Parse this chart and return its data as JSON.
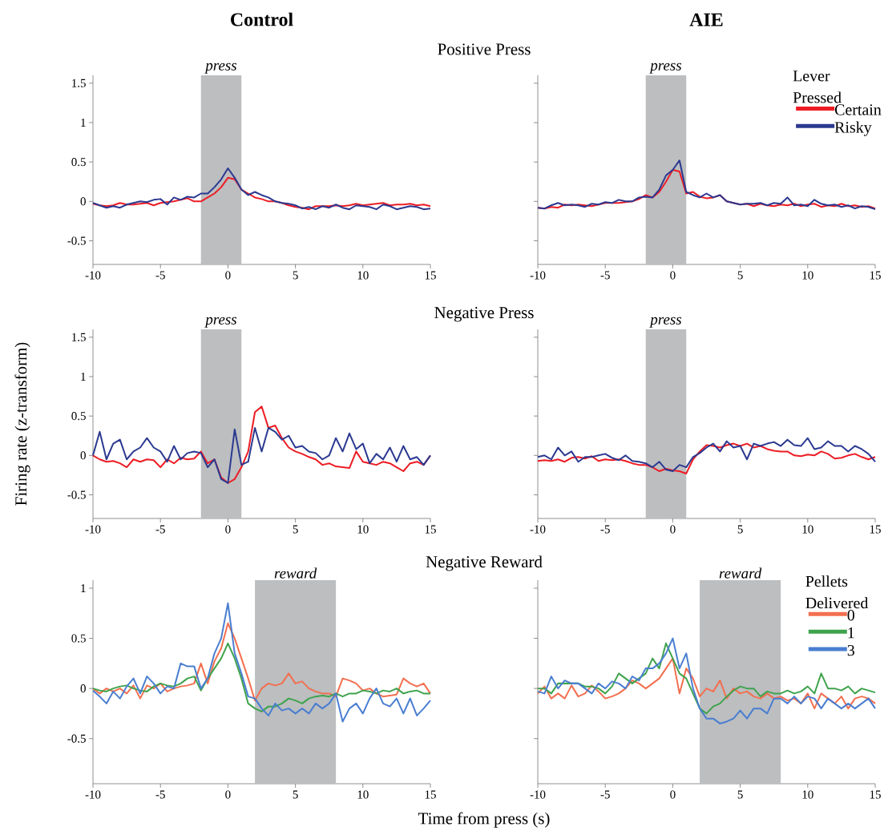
{
  "chart_data": [
    {
      "type": "line",
      "title": "Control",
      "subtitle": "Positive Press",
      "x": [
        -10,
        -9.5,
        -9,
        -8.5,
        -8,
        -7.5,
        -7,
        -6.5,
        -6,
        -5.5,
        -5,
        -4.5,
        -4,
        -3.5,
        -3,
        -2.5,
        -2,
        -1.5,
        -1,
        -0.5,
        0,
        0.5,
        1,
        1.5,
        2,
        2.5,
        3,
        3.5,
        4,
        4.5,
        5,
        5.5,
        6,
        6.5,
        7,
        7.5,
        8,
        8.5,
        9,
        9.5,
        10,
        10.5,
        11,
        11.5,
        12,
        12.5,
        13,
        13.5,
        14,
        14.5,
        15
      ],
      "xlim": [
        -10,
        15
      ],
      "xticks": [
        -10,
        -5,
        0,
        5,
        10,
        15
      ],
      "ylim": [
        -0.8,
        1.6
      ],
      "yticks": [
        -0.5,
        0,
        0.5,
        1,
        1.5
      ],
      "bands": [
        {
          "axis": "x",
          "from": -2,
          "to": 1,
          "label": "press",
          "color": "#bcbec0"
        }
      ],
      "series": [
        {
          "color": "#ed1c24",
          "values": [
            -0.03,
            -0.05,
            -0.06,
            -0.05,
            -0.02,
            -0.04,
            -0.04,
            -0.03,
            -0.02,
            -0.05,
            -0.02,
            -0.01,
            0.0,
            0.02,
            0.04,
            0.0,
            0.0,
            0.05,
            0.1,
            0.18,
            0.3,
            0.28,
            0.15,
            0.1,
            0.05,
            0.03,
            0.0,
            0.0,
            -0.02,
            -0.05,
            -0.07,
            -0.08,
            -0.1,
            -0.06,
            -0.06,
            -0.06,
            -0.05,
            -0.06,
            -0.05,
            -0.03,
            -0.05,
            -0.04,
            -0.03,
            -0.02,
            -0.05,
            -0.04,
            -0.04,
            -0.03,
            -0.05,
            -0.04,
            -0.06
          ]
        },
        {
          "color": "#2b3990",
          "values": [
            -0.02,
            -0.05,
            -0.08,
            -0.06,
            -0.08,
            -0.04,
            -0.02,
            0.0,
            -0.01,
            0.02,
            0.03,
            -0.04,
            0.05,
            0.02,
            0.06,
            0.05,
            0.1,
            0.1,
            0.18,
            0.28,
            0.42,
            0.3,
            0.15,
            0.08,
            0.12,
            0.08,
            0.05,
            0.0,
            -0.02,
            -0.03,
            -0.05,
            -0.09,
            -0.07,
            -0.1,
            -0.06,
            -0.08,
            -0.04,
            -0.08,
            -0.1,
            -0.05,
            -0.06,
            -0.07,
            -0.1,
            -0.04,
            -0.06,
            -0.1,
            -0.08,
            -0.06,
            -0.07,
            -0.1,
            -0.09
          ]
        }
      ]
    },
    {
      "type": "line",
      "title": "AIE",
      "legend": "top right",
      "legend_title": "Lever Pressed",
      "x": [
        -10,
        -9.5,
        -9,
        -8.5,
        -8,
        -7.5,
        -7,
        -6.5,
        -6,
        -5.5,
        -5,
        -4.5,
        -4,
        -3.5,
        -3,
        -2.5,
        -2,
        -1.5,
        -1,
        -0.5,
        0,
        0.5,
        1,
        1.5,
        2,
        2.5,
        3,
        3.5,
        4,
        4.5,
        5,
        5.5,
        6,
        6.5,
        7,
        7.5,
        8,
        8.5,
        9,
        9.5,
        10,
        10.5,
        11,
        11.5,
        12,
        12.5,
        13,
        13.5,
        14,
        14.5,
        15
      ],
      "xlim": [
        -10,
        15
      ],
      "xticks": [
        -10,
        -5,
        0,
        5,
        10,
        15
      ],
      "ylim": [
        -0.8,
        1.6
      ],
      "yticks": [
        -0.5,
        0,
        0.5,
        1,
        1.5
      ],
      "tick_labels": "x",
      "bands": [
        {
          "axis": "x",
          "from": -2,
          "to": 1,
          "label": "press",
          "color": "#bcbec0"
        }
      ],
      "series": [
        {
          "name": "Certain",
          "color": "#ed1c24",
          "values": [
            -0.08,
            -0.09,
            -0.07,
            -0.08,
            -0.04,
            -0.05,
            -0.04,
            -0.05,
            -0.06,
            -0.04,
            -0.02,
            -0.02,
            -0.02,
            -0.01,
            0.0,
            0.03,
            0.08,
            0.05,
            0.12,
            0.25,
            0.4,
            0.38,
            0.1,
            0.12,
            0.06,
            0.04,
            0.05,
            0.08,
            0.0,
            -0.02,
            -0.04,
            -0.03,
            -0.06,
            -0.03,
            -0.05,
            -0.06,
            -0.04,
            -0.05,
            -0.03,
            -0.06,
            -0.04,
            -0.03,
            -0.07,
            -0.05,
            -0.06,
            -0.03,
            -0.06,
            -0.05,
            -0.07,
            -0.06,
            -0.09
          ]
        },
        {
          "name": "Risky",
          "color": "#2b3990",
          "values": [
            -0.08,
            -0.09,
            -0.05,
            -0.02,
            -0.05,
            -0.04,
            -0.05,
            -0.07,
            -0.03,
            -0.04,
            -0.01,
            -0.02,
            0.02,
            0.0,
            0.0,
            0.05,
            0.06,
            0.05,
            0.15,
            0.33,
            0.4,
            0.52,
            0.12,
            0.08,
            0.05,
            0.1,
            0.05,
            0.08,
            0.0,
            -0.02,
            -0.04,
            -0.03,
            -0.03,
            -0.02,
            -0.05,
            -0.02,
            -0.03,
            0.05,
            -0.05,
            -0.04,
            -0.06,
            0.02,
            -0.03,
            -0.05,
            -0.04,
            -0.07,
            -0.05,
            -0.09,
            -0.06,
            -0.07,
            -0.1
          ]
        }
      ]
    },
    {
      "type": "line",
      "subtitle": "Negative Press",
      "ylabel": "Firing rate (z-transform)",
      "x": [
        -10,
        -9.5,
        -9,
        -8.5,
        -8,
        -7.5,
        -7,
        -6.5,
        -6,
        -5.5,
        -5,
        -4.5,
        -4,
        -3.5,
        -3,
        -2.5,
        -2,
        -1.5,
        -1,
        -0.5,
        0,
        0.5,
        1,
        1.5,
        2,
        2.5,
        3,
        3.5,
        4,
        4.5,
        5,
        5.5,
        6,
        6.5,
        7,
        7.5,
        8,
        8.5,
        9,
        9.5,
        10,
        10.5,
        11,
        11.5,
        12,
        12.5,
        13,
        13.5,
        14,
        14.5,
        15
      ],
      "xlim": [
        -10,
        15
      ],
      "xticks": [
        -10,
        -5,
        0,
        5,
        10,
        15
      ],
      "ylim": [
        -0.8,
        1.6
      ],
      "yticks": [
        -0.5,
        0,
        0.5,
        1,
        1.5
      ],
      "bands": [
        {
          "axis": "x",
          "from": -2,
          "to": 1,
          "label": "press",
          "color": "#bcbec0"
        }
      ],
      "series": [
        {
          "color": "#ed1c24",
          "values": [
            0.0,
            -0.05,
            -0.08,
            -0.07,
            -0.1,
            -0.15,
            -0.05,
            -0.08,
            -0.05,
            -0.06,
            -0.15,
            -0.05,
            -0.1,
            -0.03,
            -0.05,
            -0.04,
            0.05,
            -0.1,
            -0.05,
            -0.28,
            -0.35,
            -0.3,
            -0.15,
            0.05,
            0.55,
            0.62,
            0.35,
            0.38,
            0.22,
            0.1,
            0.05,
            0.02,
            -0.02,
            -0.05,
            -0.12,
            -0.1,
            -0.14,
            -0.15,
            -0.16,
            0.05,
            -0.08,
            -0.1,
            -0.12,
            -0.08,
            -0.1,
            -0.15,
            -0.2,
            -0.1,
            -0.08,
            -0.12,
            0.0
          ]
        },
        {
          "color": "#2b3990",
          "values": [
            0.0,
            0.3,
            -0.05,
            0.15,
            0.2,
            -0.05,
            0.05,
            0.1,
            0.22,
            0.1,
            0.05,
            -0.08,
            0.12,
            -0.05,
            0.03,
            0.05,
            0.03,
            -0.15,
            -0.05,
            -0.3,
            -0.35,
            0.33,
            -0.12,
            -0.08,
            0.35,
            0.05,
            0.35,
            0.3,
            0.2,
            0.25,
            0.1,
            0.12,
            0.05,
            0.03,
            -0.05,
            0.0,
            0.22,
            0.05,
            0.28,
            0.08,
            0.15,
            -0.1,
            0.02,
            -0.05,
            0.1,
            -0.08,
            0.12,
            -0.05,
            -0.02,
            -0.12,
            0.0
          ]
        }
      ]
    },
    {
      "type": "line",
      "x": [
        -10,
        -9.5,
        -9,
        -8.5,
        -8,
        -7.5,
        -7,
        -6.5,
        -6,
        -5.5,
        -5,
        -4.5,
        -4,
        -3.5,
        -3,
        -2.5,
        -2,
        -1.5,
        -1,
        -0.5,
        0,
        0.5,
        1,
        1.5,
        2,
        2.5,
        3,
        3.5,
        4,
        4.5,
        5,
        5.5,
        6,
        6.5,
        7,
        7.5,
        8,
        8.5,
        9,
        9.5,
        10,
        10.5,
        11,
        11.5,
        12,
        12.5,
        13,
        13.5,
        14,
        14.5,
        15
      ],
      "xlim": [
        -10,
        15
      ],
      "xticks": [
        -10,
        -5,
        0,
        5,
        10,
        15
      ],
      "ylim": [
        -0.8,
        1.6
      ],
      "yticks": [
        -0.5,
        0,
        0.5,
        1,
        1.5
      ],
      "tick_labels": "x",
      "bands": [
        {
          "axis": "x",
          "from": -2,
          "to": 1,
          "label": "press",
          "color": "#bcbec0"
        }
      ],
      "series": [
        {
          "color": "#ed1c24",
          "values": [
            -0.07,
            -0.06,
            -0.07,
            -0.05,
            -0.08,
            -0.03,
            -0.02,
            -0.04,
            -0.01,
            -0.07,
            -0.05,
            -0.06,
            -0.05,
            -0.07,
            -0.1,
            -0.12,
            -0.12,
            -0.15,
            -0.2,
            -0.17,
            -0.19,
            -0.2,
            -0.23,
            -0.05,
            0.05,
            0.13,
            0.12,
            0.1,
            0.13,
            0.15,
            0.12,
            0.15,
            0.1,
            0.12,
            0.08,
            0.06,
            0.05,
            0.05,
            0.0,
            -0.01,
            0.01,
            0.0,
            0.05,
            0.02,
            -0.04,
            -0.03,
            0.0,
            0.02,
            -0.02,
            -0.05,
            -0.02
          ]
        },
        {
          "color": "#2b3990",
          "values": [
            -0.02,
            0.0,
            -0.05,
            0.1,
            0.0,
            0.05,
            -0.08,
            -0.02,
            -0.02,
            0.0,
            0.02,
            -0.03,
            -0.06,
            0.0,
            -0.07,
            -0.08,
            -0.1,
            -0.15,
            -0.08,
            -0.18,
            -0.2,
            -0.12,
            -0.15,
            -0.02,
            0.03,
            0.1,
            0.15,
            0.05,
            0.18,
            0.1,
            0.12,
            -0.05,
            0.15,
            0.12,
            0.15,
            0.17,
            0.12,
            0.2,
            0.13,
            0.12,
            0.22,
            0.08,
            0.1,
            0.18,
            0.12,
            0.12,
            0.05,
            0.12,
            0.08,
            0.02,
            -0.08
          ]
        }
      ]
    },
    {
      "type": "line",
      "subtitle": "Negative Reward",
      "xlabel": "Time from press (s)",
      "x": [
        -10,
        -9.5,
        -9,
        -8.5,
        -8,
        -7.5,
        -7,
        -6.5,
        -6,
        -5.5,
        -5,
        -4.5,
        -4,
        -3.5,
        -3,
        -2.5,
        -2,
        -1.5,
        -1,
        -0.5,
        0,
        0.5,
        1,
        1.5,
        2,
        2.5,
        3,
        3.5,
        4,
        4.5,
        5,
        5.5,
        6,
        6.5,
        7,
        7.5,
        8,
        8.5,
        9,
        9.5,
        10,
        10.5,
        11,
        11.5,
        12,
        12.5,
        13,
        13.5,
        14,
        14.5,
        15
      ],
      "xlim": [
        -10,
        15
      ],
      "xticks": [
        -10,
        -5,
        0,
        5,
        10,
        15
      ],
      "ylim": [
        -0.95,
        1.08
      ],
      "yticks": [
        -0.5,
        0,
        0.5,
        1
      ],
      "bands": [
        {
          "axis": "x",
          "from": 2,
          "to": 8,
          "label": "reward",
          "color": "#bcbec0"
        }
      ],
      "series": [
        {
          "color": "#f36f4f",
          "values": [
            0.0,
            -0.05,
            0.0,
            -0.03,
            0.0,
            -0.05,
            0.03,
            -0.1,
            0.03,
            0.0,
            0.05,
            -0.03,
            0.0,
            0.02,
            0.03,
            0.05,
            0.25,
            0.05,
            0.27,
            0.4,
            0.65,
            0.5,
            0.3,
            0.1,
            -0.12,
            0.0,
            0.05,
            0.03,
            0.05,
            0.15,
            0.05,
            0.07,
            0.0,
            -0.03,
            -0.05,
            -0.05,
            -0.08,
            0.1,
            0.08,
            0.05,
            -0.02,
            0.0,
            -0.05,
            -0.08,
            -0.07,
            -0.06,
            0.1,
            0.05,
            0.02,
            0.05,
            -0.05
          ]
        },
        {
          "color": "#3fa34d",
          "values": [
            0.0,
            -0.02,
            -0.03,
            0.0,
            0.02,
            0.03,
            0.0,
            -0.02,
            -0.03,
            0.02,
            0.05,
            0.03,
            0.02,
            0.05,
            0.1,
            0.12,
            -0.02,
            0.1,
            0.2,
            0.3,
            0.45,
            0.3,
            0.1,
            -0.15,
            -0.2,
            -0.23,
            -0.18,
            -0.18,
            -0.15,
            -0.1,
            -0.12,
            -0.15,
            -0.1,
            -0.08,
            -0.07,
            -0.08,
            -0.05,
            -0.08,
            -0.05,
            -0.05,
            -0.02,
            -0.03,
            -0.05,
            -0.02,
            -0.03,
            0.0,
            -0.05,
            -0.03,
            -0.02,
            -0.05,
            -0.05
          ]
        },
        {
          "color": "#4a7ed0",
          "values": [
            -0.02,
            -0.08,
            -0.15,
            -0.03,
            -0.1,
            0.02,
            0.1,
            -0.05,
            0.12,
            0.05,
            -0.05,
            0.02,
            0.0,
            0.25,
            0.22,
            0.22,
            0.0,
            0.1,
            0.35,
            0.5,
            0.85,
            0.35,
            0.15,
            -0.08,
            -0.1,
            -0.2,
            -0.27,
            -0.15,
            -0.22,
            -0.2,
            -0.25,
            -0.2,
            -0.25,
            -0.15,
            -0.2,
            -0.15,
            -0.05,
            -0.33,
            -0.2,
            -0.15,
            -0.25,
            -0.1,
            0.0,
            -0.15,
            -0.18,
            -0.1,
            -0.25,
            -0.1,
            -0.27,
            -0.2,
            -0.12
          ]
        }
      ]
    },
    {
      "type": "line",
      "legend": "top right",
      "legend_title": "Pellets Delivered",
      "x": [
        -10,
        -9.5,
        -9,
        -8.5,
        -8,
        -7.5,
        -7,
        -6.5,
        -6,
        -5.5,
        -5,
        -4.5,
        -4,
        -3.5,
        -3,
        -2.5,
        -2,
        -1.5,
        -1,
        -0.5,
        0,
        0.5,
        1,
        1.5,
        2,
        2.5,
        3,
        3.5,
        4,
        4.5,
        5,
        5.5,
        6,
        6.5,
        7,
        7.5,
        8,
        8.5,
        9,
        9.5,
        10,
        10.5,
        11,
        11.5,
        12,
        12.5,
        13,
        13.5,
        14,
        14.5,
        15
      ],
      "xlim": [
        -10,
        15
      ],
      "xticks": [
        -10,
        -5,
        0,
        5,
        10,
        15
      ],
      "ylim": [
        -0.95,
        1.08
      ],
      "yticks": [
        -0.5,
        0,
        0.5,
        1
      ],
      "tick_labels": "x",
      "bands": [
        {
          "axis": "x",
          "from": 2,
          "to": 8,
          "label": "reward",
          "color": "#bcbec0"
        }
      ],
      "series": [
        {
          "name": "0",
          "color": "#f36f4f",
          "values": [
            -0.05,
            0.02,
            -0.1,
            -0.05,
            -0.1,
            0.03,
            -0.08,
            -0.05,
            0.03,
            -0.03,
            -0.1,
            -0.08,
            -0.05,
            0.0,
            0.08,
            0.05,
            0.0,
            0.05,
            0.1,
            0.2,
            0.3,
            -0.05,
            0.2,
            0.1,
            -0.08,
            0.0,
            -0.03,
            0.08,
            -0.1,
            0.0,
            -0.05,
            -0.03,
            -0.08,
            -0.1,
            -0.05,
            -0.1,
            -0.08,
            -0.12,
            -0.1,
            -0.15,
            -0.05,
            -0.2,
            -0.05,
            -0.1,
            -0.15,
            -0.08,
            -0.2,
            -0.1,
            -0.08,
            -0.1,
            -0.15
          ]
        },
        {
          "name": "1",
          "color": "#3fa34d",
          "values": [
            0.0,
            0.0,
            -0.05,
            0.05,
            0.05,
            0.05,
            0.05,
            0.02,
            0.02,
            0.0,
            -0.05,
            0.02,
            0.15,
            0.1,
            0.05,
            0.1,
            0.15,
            0.3,
            0.2,
            0.45,
            0.3,
            0.15,
            0.1,
            -0.05,
            -0.2,
            -0.25,
            -0.18,
            -0.15,
            -0.08,
            -0.02,
            0.02,
            0.0,
            0.0,
            -0.08,
            -0.03,
            -0.05,
            -0.05,
            -0.02,
            -0.05,
            -0.03,
            0.02,
            -0.05,
            0.15,
            0.0,
            0.0,
            -0.02,
            0.02,
            -0.05,
            0.0,
            -0.02,
            -0.04
          ]
        },
        {
          "name": "3",
          "color": "#4a7ed0",
          "values": [
            -0.03,
            -0.05,
            0.12,
            0.0,
            0.08,
            0.05,
            0.05,
            0.0,
            -0.05,
            0.05,
            0.0,
            0.07,
            0.05,
            0.0,
            0.12,
            0.08,
            0.2,
            0.2,
            0.25,
            0.35,
            0.5,
            0.2,
            0.35,
            0.0,
            -0.2,
            -0.3,
            -0.3,
            -0.35,
            -0.33,
            -0.3,
            -0.22,
            -0.3,
            -0.2,
            -0.2,
            -0.25,
            -0.1,
            -0.1,
            -0.15,
            -0.08,
            -0.15,
            -0.08,
            -0.1,
            -0.2,
            -0.1,
            -0.15,
            -0.2,
            -0.15,
            -0.2,
            -0.15,
            -0.1,
            -0.2
          ]
        }
      ]
    }
  ]
}
